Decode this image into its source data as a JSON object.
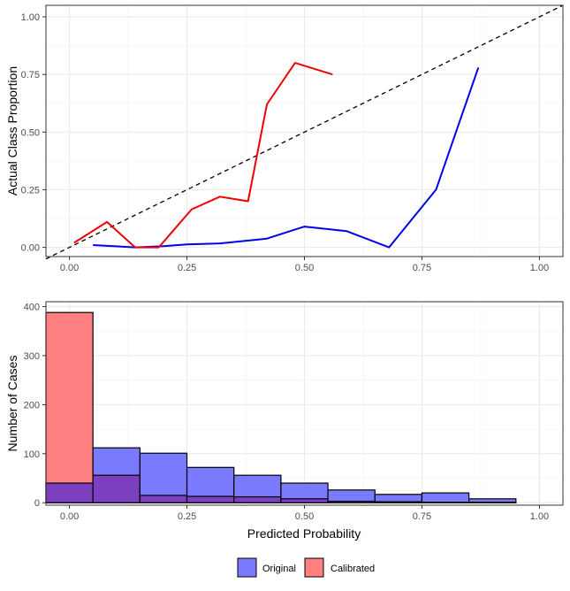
{
  "colors": {
    "original_line": "#0000ee",
    "calibrated_line": "#ee0000",
    "original_fill": "#7a7aff",
    "calibrated_fill": "#ff8080",
    "overlap_fill": "#7b3fbf",
    "grid_major": "#ebebeb",
    "grid_minor": "#f4f4f4",
    "panel_border": "#333333",
    "diagonal": "#000000"
  },
  "chart_data": [
    {
      "type": "line",
      "title": "",
      "xlabel": "",
      "ylabel": "Actual Class Proportion",
      "xlim": [
        -0.05,
        1.05
      ],
      "ylim": [
        -0.04,
        1.05
      ],
      "x_ticks": [
        "0.00",
        "0.25",
        "0.50",
        "0.75",
        "1.00"
      ],
      "y_ticks": [
        "0.00",
        "0.25",
        "0.50",
        "0.75",
        "1.00"
      ],
      "grid": true,
      "reference_line": {
        "style": "dashed",
        "from": [
          -0.05,
          -0.05
        ],
        "to": [
          1.05,
          1.05
        ]
      },
      "series": [
        {
          "key": "original",
          "color": "#0000ee",
          "x": [
            0.05,
            0.14,
            0.2,
            0.25,
            0.32,
            0.42,
            0.5,
            0.59,
            0.68,
            0.78,
            0.87
          ],
          "y": [
            0.01,
            0.0,
            0.005,
            0.013,
            0.017,
            0.038,
            0.09,
            0.07,
            0.0,
            0.25,
            0.78
          ]
        },
        {
          "key": "calibrated",
          "color": "#ee0000",
          "x": [
            0.01,
            0.08,
            0.14,
            0.19,
            0.26,
            0.32,
            0.38,
            0.42,
            0.48,
            0.56
          ],
          "y": [
            0.02,
            0.11,
            0.0,
            0.0,
            0.165,
            0.22,
            0.2,
            0.62,
            0.8,
            0.75
          ]
        }
      ]
    },
    {
      "type": "bar",
      "title": "",
      "xlabel": "Predicted Probability",
      "ylabel": "Number of Cases",
      "xlim": [
        -0.05,
        1.05
      ],
      "ylim": [
        -5,
        410
      ],
      "x_ticks": [
        "0.00",
        "0.25",
        "0.50",
        "0.75",
        "1.00"
      ],
      "y_ticks": [
        "0",
        "100",
        "200",
        "300",
        "400"
      ],
      "grid": true,
      "bin_edges": [
        -0.05,
        0.05,
        0.15,
        0.25,
        0.35,
        0.45,
        0.55,
        0.65,
        0.75,
        0.85,
        0.95
      ],
      "series": [
        {
          "name": "Original",
          "values": [
            40,
            112,
            101,
            72,
            56,
            40,
            26,
            17,
            20,
            8
          ]
        },
        {
          "name": "Calibrated",
          "values": [
            388,
            56,
            15,
            13,
            12,
            8,
            3,
            2,
            1,
            1
          ]
        }
      ],
      "legend_position": "bottom"
    }
  ]
}
